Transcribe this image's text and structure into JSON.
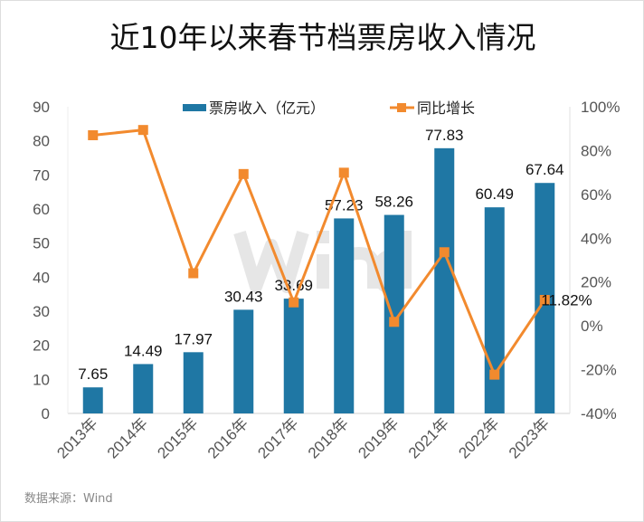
{
  "chart_data": {
    "type": "bar",
    "title": "近10年以来春节档票房收入情况",
    "categories": [
      "2013年",
      "2014年",
      "2015年",
      "2016年",
      "2017年",
      "2018年",
      "2019年",
      "2021年",
      "2022年",
      "2023年"
    ],
    "series": [
      {
        "name": "票房收入（亿元）",
        "type": "bar",
        "axis": "left",
        "color": "#1f77a4",
        "values": [
          7.65,
          14.49,
          17.97,
          30.43,
          33.69,
          57.23,
          58.26,
          77.83,
          60.49,
          67.64
        ],
        "labels": [
          "7.65",
          "14.49",
          "17.97",
          "30.43",
          "33.69",
          "57.23",
          "58.26",
          "77.83",
          "60.49",
          "67.64"
        ]
      },
      {
        "name": "同比增长",
        "type": "line",
        "axis": "right",
        "color": "#f28a2e",
        "values": [
          87,
          89.4,
          24.0,
          69.3,
          10.7,
          69.9,
          1.8,
          33.6,
          -22.3,
          11.82
        ],
        "point_label": {
          "index": 9,
          "text": "11.82%"
        }
      }
    ],
    "left_axis": {
      "ylim": [
        0,
        90
      ],
      "ticks": [
        "0",
        "10",
        "20",
        "30",
        "40",
        "50",
        "60",
        "70",
        "80",
        "90"
      ]
    },
    "right_axis": {
      "ylim": [
        -40,
        100
      ],
      "ticks": [
        "-40%",
        "-20%",
        "0%",
        "20%",
        "40%",
        "60%",
        "80%",
        "100%"
      ]
    },
    "legend": "top-center",
    "watermark": "Wind"
  },
  "source": "数据来源：Wind"
}
